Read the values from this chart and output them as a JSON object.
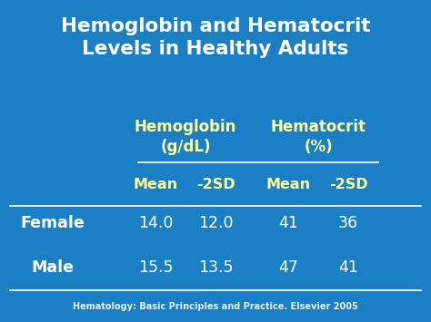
{
  "title_line1": "Hemoglobin and Hematocrit",
  "title_line2": "Levels in Healthy Adults",
  "bg_color": "#1a7fc4",
  "title_color": "#ffffff",
  "header_color": "#ffff99",
  "data_color": "#ffffff",
  "row_label_color": "#ffffff",
  "citation_color": "#e8f0ff",
  "line_color": "#ffffff",
  "col_group_headers": [
    "Hemoglobin\n(g/dL)",
    "Hematocrit\n(%)"
  ],
  "col_headers": [
    "Mean",
    "-2SD",
    "Mean",
    "-2SD"
  ],
  "row_labels": [
    "Female",
    "Male"
  ],
  "data": [
    [
      "14.0",
      "12.0",
      "41",
      "36"
    ],
    [
      "15.5",
      "13.5",
      "47",
      "41"
    ]
  ],
  "citation": "Hematology: Basic Principles and Practice. Elsevier 2005"
}
